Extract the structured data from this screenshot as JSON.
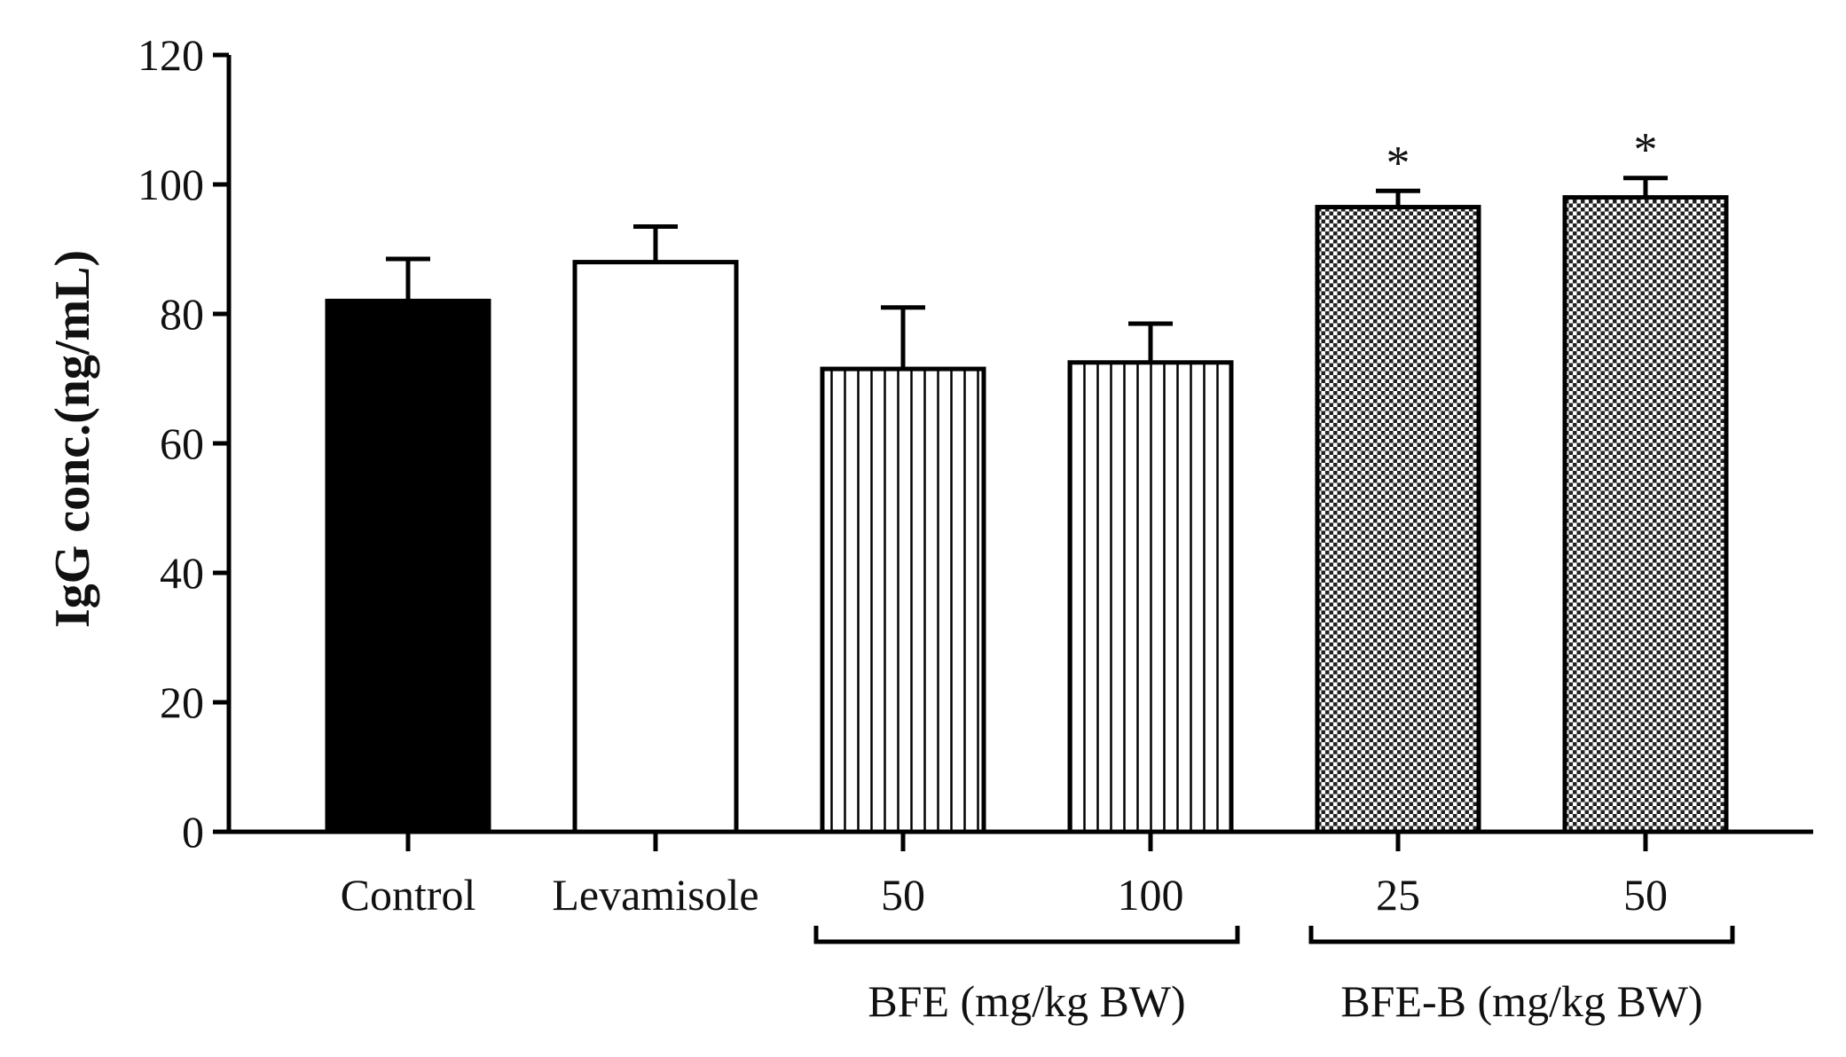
{
  "chart_data": {
    "type": "bar",
    "title": "",
    "xlabel": "",
    "ylabel": "IgG conc.(ng/mL)",
    "ylim": [
      0,
      120
    ],
    "yticks": [
      0,
      20,
      40,
      60,
      80,
      100,
      120
    ],
    "categories": [
      "Control",
      "Levamisole",
      "50",
      "100",
      "25",
      "50"
    ],
    "values": [
      82,
      88,
      71.5,
      72.5,
      96.5,
      98
    ],
    "errors": [
      6.5,
      5.5,
      9.5,
      6,
      2.5,
      3
    ],
    "fills": [
      "solid-black",
      "white",
      "vertical-stripes",
      "vertical-stripes",
      "checkered",
      "checkered"
    ],
    "significance": [
      "",
      "",
      "",
      "",
      "*",
      "*"
    ],
    "groups": [
      {
        "label": "BFE (mg/kg BW)",
        "categories": [
          2,
          3
        ]
      },
      {
        "label": "BFE-B (mg/kg BW)",
        "categories": [
          4,
          5
        ]
      }
    ],
    "grid": false
  }
}
